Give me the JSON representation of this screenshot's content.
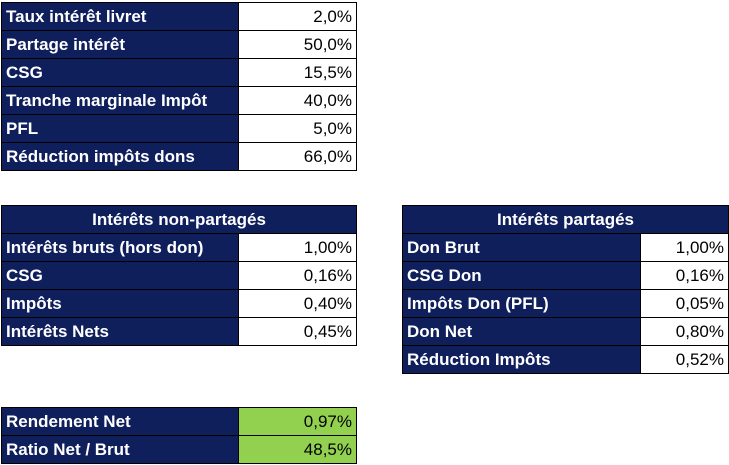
{
  "params": [
    {
      "label": "Taux intérêt livret",
      "value": "2,0%"
    },
    {
      "label": "Partage intérêt",
      "value": "50,0%"
    },
    {
      "label": "CSG",
      "value": "15,5%"
    },
    {
      "label": "Tranche marginale Impôt",
      "value": "40,0%"
    },
    {
      "label": "PFL",
      "value": "5,0%"
    },
    {
      "label": "Réduction impôts dons",
      "value": "66,0%"
    }
  ],
  "non_shared": {
    "header": "Intérêts non-partagés",
    "rows": [
      {
        "label": "Intérêts bruts (hors don)",
        "value": "1,00%"
      },
      {
        "label": "CSG",
        "value": "0,16%"
      },
      {
        "label": "Impôts",
        "value": "0,40%"
      },
      {
        "label": "Intérêts Nets",
        "value": "0,45%"
      }
    ]
  },
  "shared": {
    "header": "Intérêts partagés",
    "rows": [
      {
        "label": "Don Brut",
        "value": "1,00%"
      },
      {
        "label": "CSG Don",
        "value": "0,16%"
      },
      {
        "label": "Impôts Don (PFL)",
        "value": "0,05%"
      },
      {
        "label": "Don Net",
        "value": "0,80%"
      },
      {
        "label": "Réduction Impôts",
        "value": "0,52%"
      }
    ]
  },
  "summary": [
    {
      "label": "Rendement Net",
      "value": "0,97%"
    },
    {
      "label": "Ratio Net / Brut",
      "value": "48,5%"
    }
  ],
  "colors": {
    "header_bg": "#0f1f5c",
    "highlight_green": "#92d050"
  }
}
